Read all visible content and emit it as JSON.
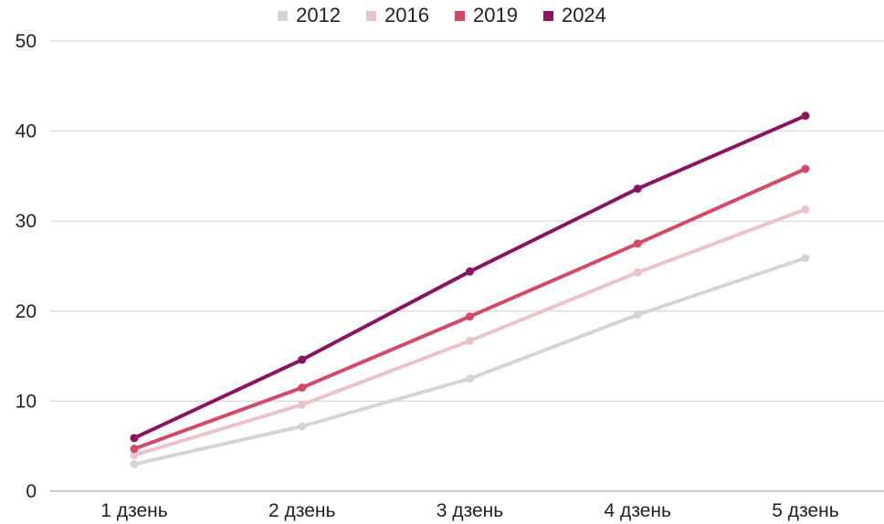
{
  "chart_data": {
    "type": "line",
    "title": "",
    "xlabel": "",
    "ylabel": "",
    "categories": [
      "1 дзень",
      "2 дзень",
      "3 дзень",
      "4 дзень",
      "5 дзень"
    ],
    "ylim": [
      0,
      50
    ],
    "yticks": [
      "0",
      "10",
      "20",
      "30",
      "40",
      "50"
    ],
    "grid": true,
    "legend_position": "top-center",
    "series": [
      {
        "name": "2012",
        "color": "#d4d4d4",
        "values": [
          3.0,
          7.2,
          12.5,
          19.6,
          25.9
        ]
      },
      {
        "name": "2016",
        "color": "#e8c4c8",
        "values": [
          4.0,
          9.6,
          16.7,
          24.3,
          31.3
        ]
      },
      {
        "name": "2019",
        "color": "#d44a66",
        "values": [
          4.7,
          11.5,
          19.4,
          27.5,
          35.8
        ]
      },
      {
        "name": "2024",
        "color": "#8b1460",
        "values": [
          5.9,
          14.6,
          24.4,
          33.6,
          41.7
        ]
      }
    ]
  }
}
